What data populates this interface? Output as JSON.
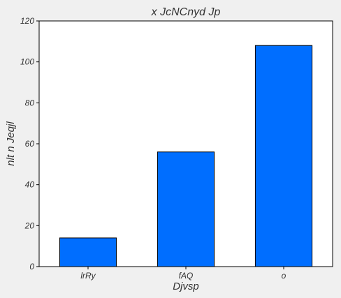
{
  "chart_data": {
    "type": "bar",
    "title": "x JcNCnyd Jp",
    "xlabel": "Djvsp",
    "ylabel": "nlt n   Jeqjl",
    "categories": [
      "lrRy",
      "fAQ",
      "o"
    ],
    "values": [
      14,
      56,
      108
    ],
    "ylim": [
      0,
      120
    ],
    "yticks": [
      0,
      20,
      40,
      60,
      80,
      100,
      120
    ],
    "grid": false,
    "legend": "none",
    "colors": {
      "bar_fill": "#006eff",
      "bar_stroke": "#000000",
      "plot_background": "#ffffff",
      "figure_background": "#f0f0f0",
      "text": "#333333"
    }
  }
}
